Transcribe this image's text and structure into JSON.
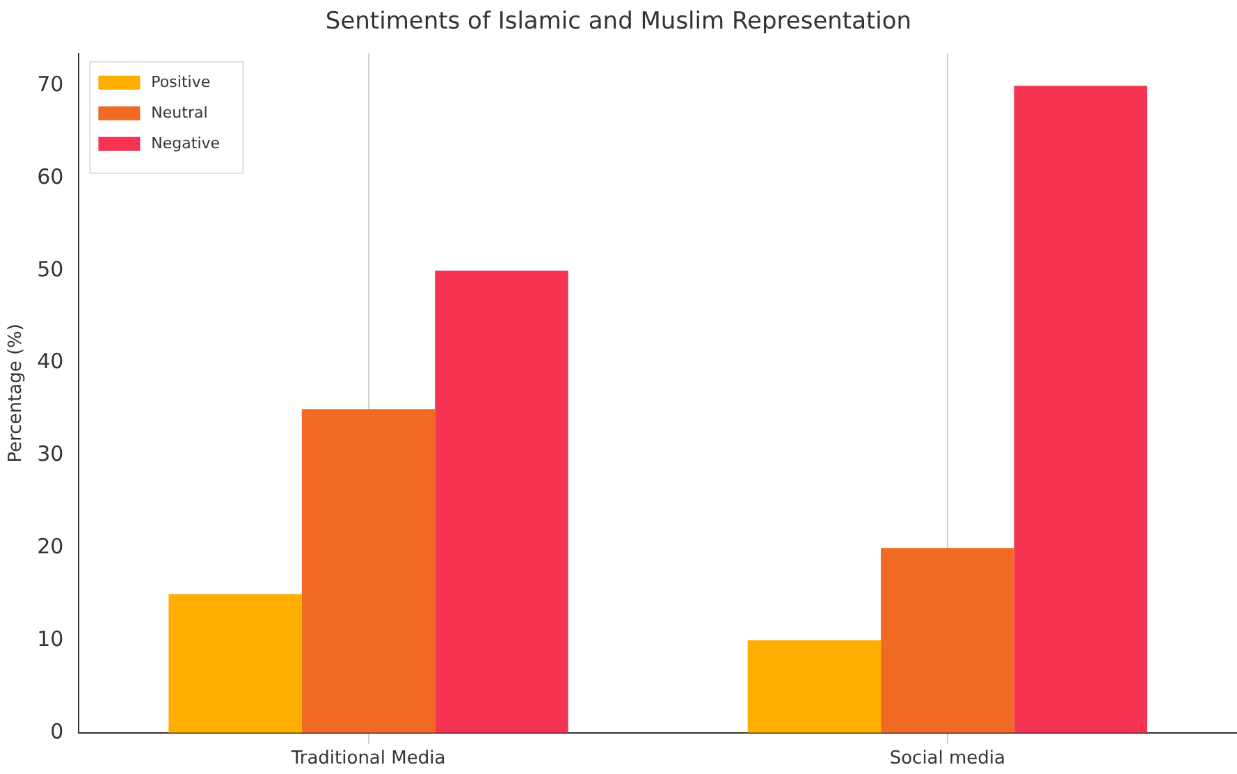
{
  "chart_data": {
    "type": "bar",
    "title": "Sentiments of Islamic and Muslim Representation",
    "ylabel": "Percentage (%)",
    "categories": [
      "Traditional Media",
      "Social media"
    ],
    "series": [
      {
        "name": "Positive",
        "color": "#ffae00",
        "values": [
          15,
          10
        ]
      },
      {
        "name": "Neutral",
        "color": "#f06a23",
        "values": [
          35,
          20
        ]
      },
      {
        "name": "Negative",
        "color": "#f53353",
        "values": [
          50,
          70
        ]
      }
    ],
    "ylim": [
      0,
      73.5
    ],
    "yticks": [
      0,
      10,
      20,
      30,
      40,
      50,
      60,
      70
    ],
    "grid": "x",
    "legend": "top left"
  }
}
